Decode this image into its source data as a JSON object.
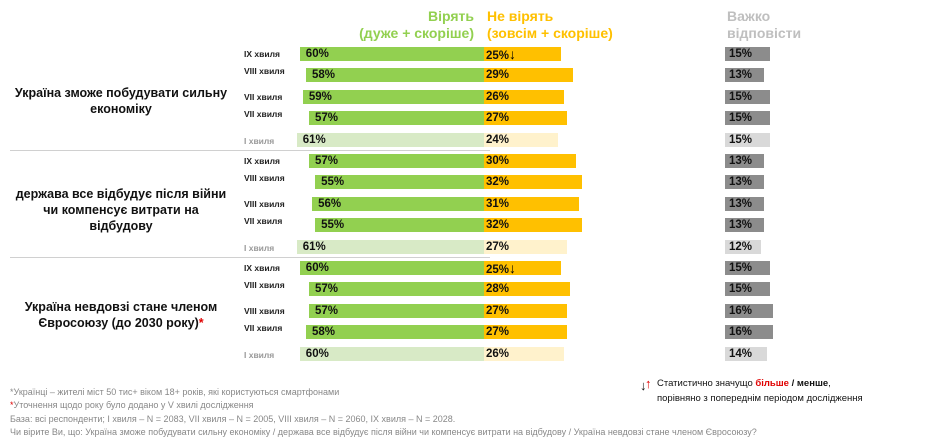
{
  "headers": {
    "agree": "Вірять",
    "agree_sub": "(дуже + скоріше)",
    "disagree": "Не вірять",
    "disagree_sub": "(зовсім + скоріше)",
    "hard": "Важко",
    "hard_sub": "відповісти"
  },
  "colors": {
    "agree": "#92d050",
    "disagree": "#ffc000",
    "hard": "#8c8c8c",
    "agree_old": "#d8eac6",
    "disagree_old": "#fff2cc",
    "hard_old": "#d9d9d9",
    "up": "#e00000",
    "down": "#000000"
  },
  "chart_data": {
    "type": "bar",
    "stacked": "diverging",
    "series": [
      {
        "name": "Вірять (дуже + скоріше)"
      },
      {
        "name": "Не вірять (зовсім + скоріше)"
      },
      {
        "name": "Важко відповісти"
      }
    ],
    "groups": [
      {
        "label": "Україна зможе побудувати сильну економіку",
        "asterisk": "",
        "rows": [
          {
            "wave": "IX хвиля",
            "agree": 60,
            "disagree": 25,
            "hard": 15,
            "flag": "down"
          },
          {
            "wave": "VIII хвиля",
            "agree": 58,
            "disagree": 29,
            "hard": 13,
            "flag": ""
          },
          {
            "wave": "VII хвиля",
            "agree": 59,
            "disagree": 26,
            "hard": 15,
            "flag": ""
          },
          {
            "wave": "VII хвиля",
            "agree": 57,
            "disagree": 27,
            "hard": 15,
            "flag": ""
          },
          {
            "wave": "I хвиля",
            "agree": 61,
            "disagree": 24,
            "hard": 15,
            "flag": "",
            "old": true
          }
        ]
      },
      {
        "label": "держава все відбудує після війни чи компенсує витрати на відбудову",
        "asterisk": "",
        "rows": [
          {
            "wave": "IX хвиля",
            "agree": 57,
            "disagree": 30,
            "hard": 13,
            "flag": ""
          },
          {
            "wave": "VIII хвиля",
            "agree": 55,
            "disagree": 32,
            "hard": 13,
            "flag": ""
          },
          {
            "wave": "VIII хвиля",
            "agree": 56,
            "disagree": 31,
            "hard": 13,
            "flag": ""
          },
          {
            "wave": "VII хвиля",
            "agree": 55,
            "disagree": 32,
            "hard": 13,
            "flag": ""
          },
          {
            "wave": "I хвиля",
            "agree": 61,
            "disagree": 27,
            "hard": 12,
            "flag": "",
            "old": true
          }
        ]
      },
      {
        "label": "Україна невдовзі стане членом Євросоюзу (до 2030 року)",
        "asterisk": "*",
        "rows": [
          {
            "wave": "IX хвиля",
            "agree": 60,
            "disagree": 25,
            "hard": 15,
            "flag": "down"
          },
          {
            "wave": "VIII хвиля",
            "agree": 57,
            "disagree": 28,
            "hard": 15,
            "flag": ""
          },
          {
            "wave": "VIII хвиля",
            "agree": 57,
            "disagree": 27,
            "hard": 16,
            "flag": ""
          },
          {
            "wave": "VII хвиля",
            "agree": 58,
            "disagree": 27,
            "hard": 16,
            "flag": ""
          },
          {
            "wave": "I хвиля",
            "agree": 60,
            "disagree": 26,
            "hard": 14,
            "flag": "",
            "old": true
          }
        ]
      }
    ]
  },
  "legend": {
    "line1_a": "Статистично значущо ",
    "line1_more": "більше",
    "line1_sep": " / ",
    "line1_less": "менше",
    "line1_end": ",",
    "line2": "порівняно з попереднім періодом дослідження"
  },
  "footnotes": {
    "f1": "*Українці – жителі міст 50 тис+ віком 18+ років, які користуються смартфонами",
    "f2_star": "*",
    "f2": "Уточнення щодо року було додано у V хвилі дослідження",
    "base": "База: всі респонденти; I хвиля – N = 2083, VII хвиля – N = 2005, VIII хвиля – N = 2060, IX хвиля – N = 2028.",
    "question": "Чи вірите Ви, що: Україна зможе побудувати сильну економіку / держава все відбудує після війни чи компенсує витрати на відбудову / Україна невдовзі стане членом Євросоюзу?"
  }
}
